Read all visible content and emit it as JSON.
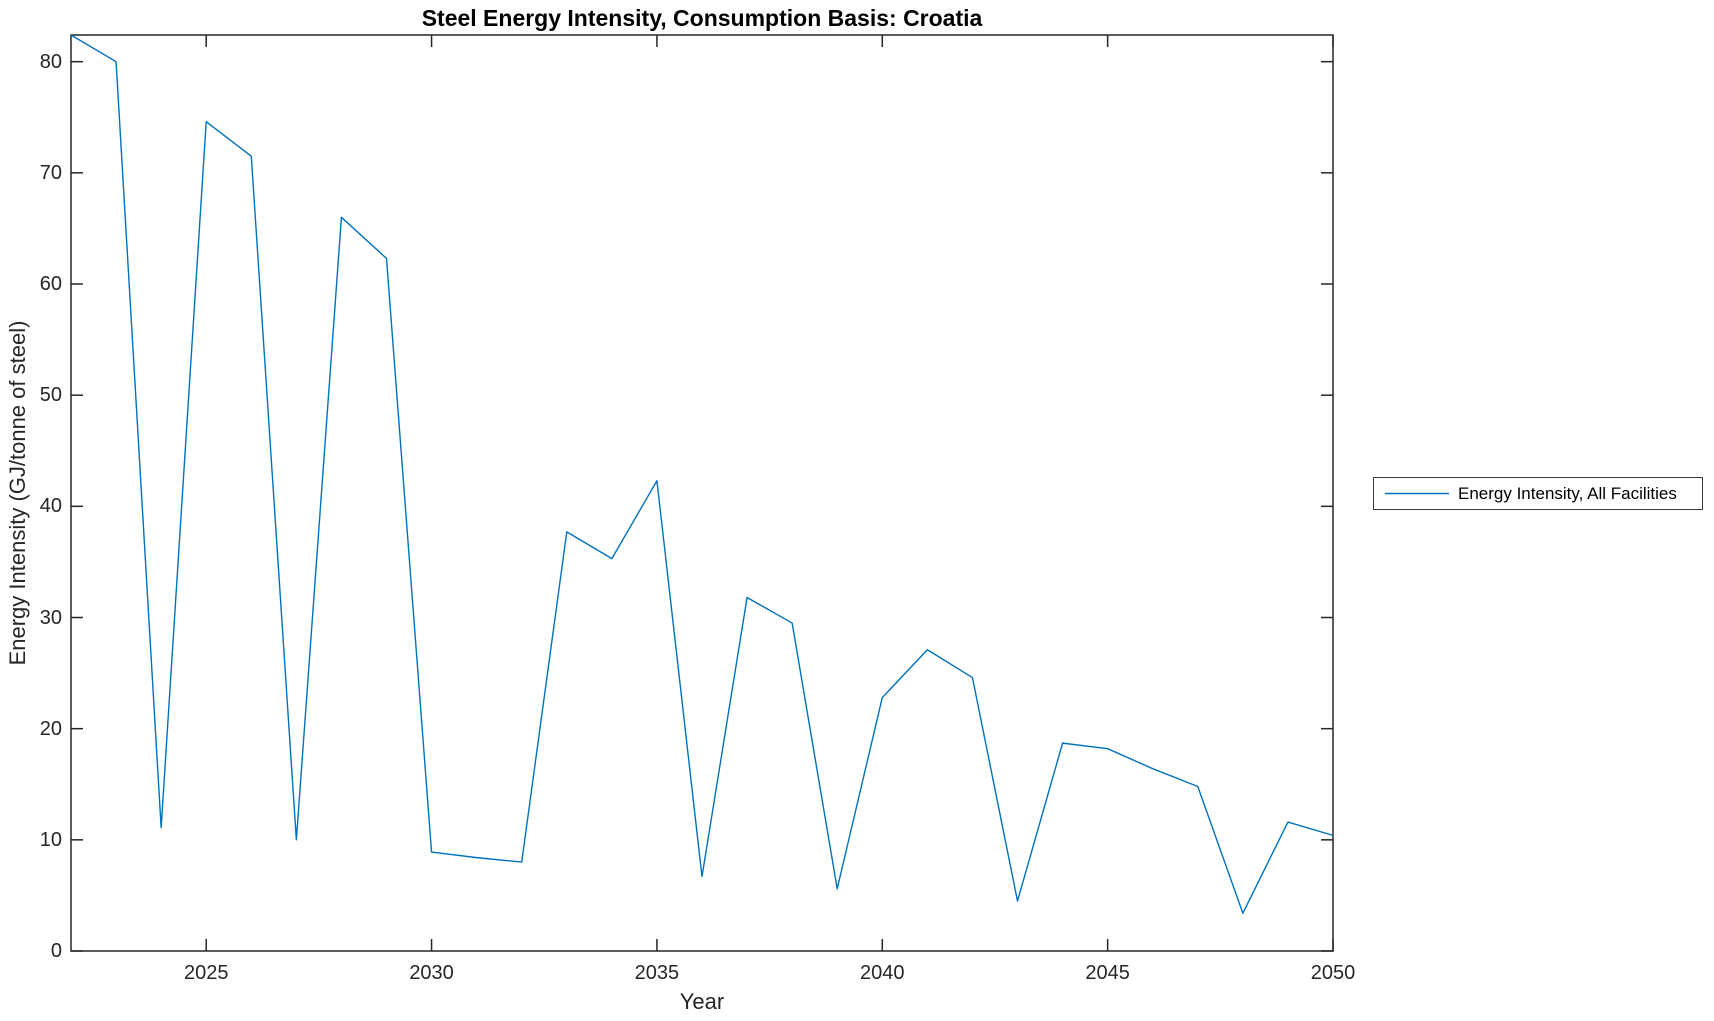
{
  "figure": {
    "title": "Steel Energy Intensity, Consumption Basis: Croatia",
    "xlabel": "Year",
    "ylabel": "Energy Intensity (GJ/tonne of steel)"
  },
  "legend": {
    "entries": [
      {
        "label": "Energy Intensity, All Facilities",
        "color": "#0072BD"
      }
    ],
    "position": "outside-right"
  },
  "chart_data": {
    "type": "line",
    "title": "Steel Energy Intensity, Consumption Basis: Croatia",
    "xlabel": "Year",
    "ylabel": "Energy Intensity (GJ/tonne of steel)",
    "grid": false,
    "box": true,
    "axis_color": "#262626",
    "line_color": "#0072BD",
    "xlim": [
      2022,
      2050
    ],
    "ylim": [
      0,
      82.4
    ],
    "xticks": [
      2025,
      2030,
      2035,
      2040,
      2045,
      2050
    ],
    "yticks": [
      0,
      10,
      20,
      30,
      40,
      50,
      60,
      70,
      80
    ],
    "x": [
      2022,
      2023,
      2024,
      2025,
      2026,
      2027,
      2028,
      2029,
      2030,
      2031,
      2032,
      2033,
      2034,
      2035,
      2036,
      2037,
      2038,
      2039,
      2040,
      2041,
      2042,
      2043,
      2044,
      2045,
      2046,
      2047,
      2048,
      2049,
      2050
    ],
    "series": [
      {
        "name": "Energy Intensity, All Facilities",
        "color": "#0072BD",
        "values": [
          82.4,
          80.0,
          11.1,
          74.6,
          71.5,
          10.0,
          66.0,
          62.3,
          8.9,
          8.4,
          8.0,
          37.7,
          35.3,
          42.3,
          6.7,
          31.8,
          29.5,
          5.6,
          22.8,
          27.1,
          24.6,
          4.5,
          18.7,
          18.2,
          16.4,
          14.8,
          3.4,
          11.6,
          10.4
        ]
      }
    ]
  }
}
